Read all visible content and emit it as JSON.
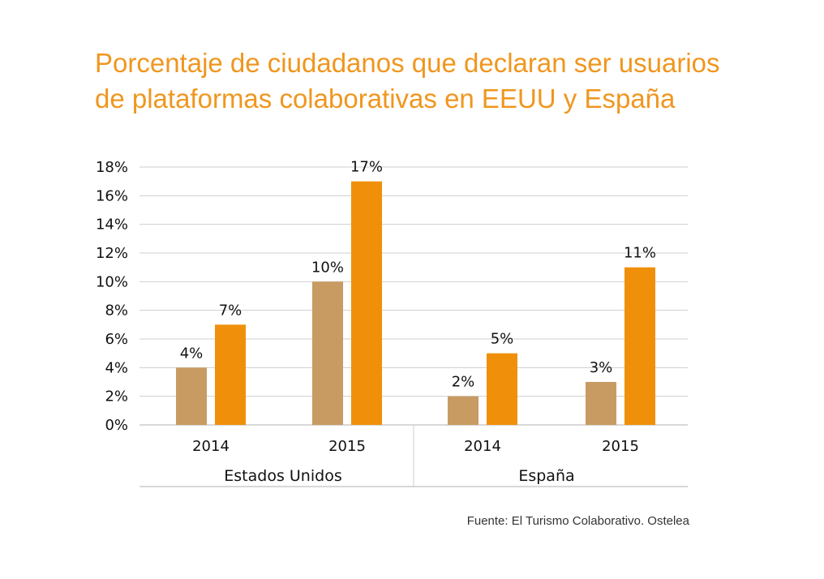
{
  "chart_data": {
    "type": "bar",
    "title": [
      "Porcentaje de ciudadanos que declaran ser usuarios",
      "de plataformas colaborativas en EEUU y España"
    ],
    "groups": [
      {
        "name": "Estados Unidos",
        "categories": [
          {
            "label": "2014",
            "values": [
              4,
              7
            ],
            "value_labels": [
              "4%",
              "7%"
            ]
          },
          {
            "label": "2015",
            "values": [
              10,
              17
            ],
            "value_labels": [
              "10%",
              "17%"
            ]
          }
        ]
      },
      {
        "name": "España",
        "categories": [
          {
            "label": "2014",
            "values": [
              2,
              5
            ],
            "value_labels": [
              "2%",
              "5%"
            ]
          },
          {
            "label": "2015",
            "values": [
              3,
              11
            ],
            "value_labels": [
              "3%",
              "11%"
            ]
          }
        ]
      }
    ],
    "series_colors": [
      "#c89b63",
      "#f0900a"
    ],
    "yticks": [
      0,
      2,
      4,
      6,
      8,
      10,
      12,
      14,
      16,
      18
    ],
    "ytick_labels": [
      "0%",
      "2%",
      "4%",
      "6%",
      "8%",
      "10%",
      "12%",
      "14%",
      "16%",
      "18%"
    ],
    "ylim": [
      0,
      18
    ],
    "grid": true,
    "source": "Fuente: El Turismo Colaborativo. Ostelea"
  }
}
